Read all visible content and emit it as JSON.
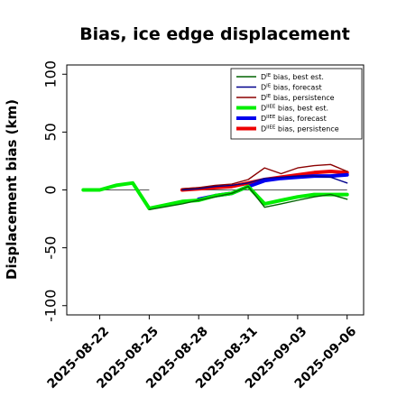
{
  "chart_data": {
    "type": "line",
    "title": "Bias, ice edge displacement",
    "xlabel": "",
    "ylabel": "Displacement bias (km)",
    "xlim": [
      "2025-08-20",
      "2025-09-07"
    ],
    "ylim": [
      -108,
      108
    ],
    "yticks": [
      -100,
      -50,
      0,
      50,
      100
    ],
    "xticks": [
      "2025-08-22",
      "2025-08-25",
      "2025-08-28",
      "2025-08-31",
      "2025-09-03",
      "2025-09-06"
    ],
    "highlighted_xtick": "2025-08-28",
    "highlight_color": "#1e8c1e",
    "zero_line": {
      "y": 0,
      "color": "#555555"
    },
    "legend_position": "top-right",
    "grid": false,
    "series": [
      {
        "name": "D^IE bias, best est.",
        "label_sup": "IE",
        "color": "#006400",
        "width": 1.4,
        "x": [
          "2025-08-25",
          "2025-08-27",
          "2025-08-28",
          "2025-08-29",
          "2025-08-30",
          "2025-08-31",
          "2025-09-01",
          "2025-09-02",
          "2025-09-03",
          "2025-09-04",
          "2025-09-05",
          "2025-09-06"
        ],
        "y": [
          -17,
          -12,
          -9,
          -6,
          -3,
          3,
          -15,
          -12,
          -9,
          -6,
          -4,
          -8
        ]
      },
      {
        "name": "D^IE bias, forecast",
        "label_sup": "IE",
        "color": "#00008b",
        "width": 1.4,
        "x": [
          "2025-08-27",
          "2025-08-28",
          "2025-08-29",
          "2025-08-30",
          "2025-08-31",
          "2025-09-01",
          "2025-09-02",
          "2025-09-03",
          "2025-09-04",
          "2025-09-05",
          "2025-09-06"
        ],
        "y": [
          0,
          1,
          3,
          4,
          6,
          10,
          11,
          12,
          12,
          11,
          6
        ]
      },
      {
        "name": "D^IE bias, persistence",
        "label_sup": "IE",
        "color": "#8b0000",
        "width": 1.4,
        "x": [
          "2025-08-27",
          "2025-08-28",
          "2025-08-29",
          "2025-08-30",
          "2025-08-31",
          "2025-09-01",
          "2025-09-02",
          "2025-09-03",
          "2025-09-04",
          "2025-09-05",
          "2025-09-06"
        ],
        "y": [
          1,
          2,
          4,
          5,
          9,
          19,
          14,
          19,
          21,
          22,
          16
        ]
      },
      {
        "name": "D^IIEE bias, best est.",
        "label_sup": "IIEE",
        "color": "#00ee00",
        "width": 4,
        "x": [
          "2025-08-21",
          "2025-08-22",
          "2025-08-23",
          "2025-08-24",
          "2025-08-25",
          "2025-08-27",
          "2025-08-28",
          "2025-08-29",
          "2025-08-30",
          "2025-08-31",
          "2025-09-01",
          "2025-09-02",
          "2025-09-03",
          "2025-09-04",
          "2025-09-05",
          "2025-09-06"
        ],
        "y": [
          0,
          0,
          4,
          6,
          -16,
          -10,
          -9,
          -5,
          -3,
          3,
          -12,
          -9,
          -6,
          -4,
          -4,
          -4
        ]
      },
      {
        "name": "D^IIEE bias, forecast",
        "label_sup": "IIEE",
        "color": "#0000ee",
        "width": 4,
        "x": [
          "2025-08-28",
          "2025-08-29",
          "2025-08-30",
          "2025-08-31",
          "2025-09-01",
          "2025-09-02",
          "2025-09-03",
          "2025-09-04",
          "2025-09-05",
          "2025-09-06"
        ],
        "y": [
          -8,
          -5,
          -3,
          3,
          8,
          10,
          11,
          12,
          12,
          13
        ]
      },
      {
        "name": "D^IIEE bias, persistence",
        "label_sup": "IIEE",
        "color": "#ee0000",
        "width": 4,
        "x": [
          "2025-08-27",
          "2025-08-28",
          "2025-08-29",
          "2025-08-30",
          "2025-08-31",
          "2025-09-01",
          "2025-09-02",
          "2025-09-03",
          "2025-09-04",
          "2025-09-05",
          "2025-09-06"
        ],
        "y": [
          0,
          1,
          2,
          3,
          6,
          9,
          11,
          13,
          15,
          16,
          15
        ]
      }
    ]
  }
}
